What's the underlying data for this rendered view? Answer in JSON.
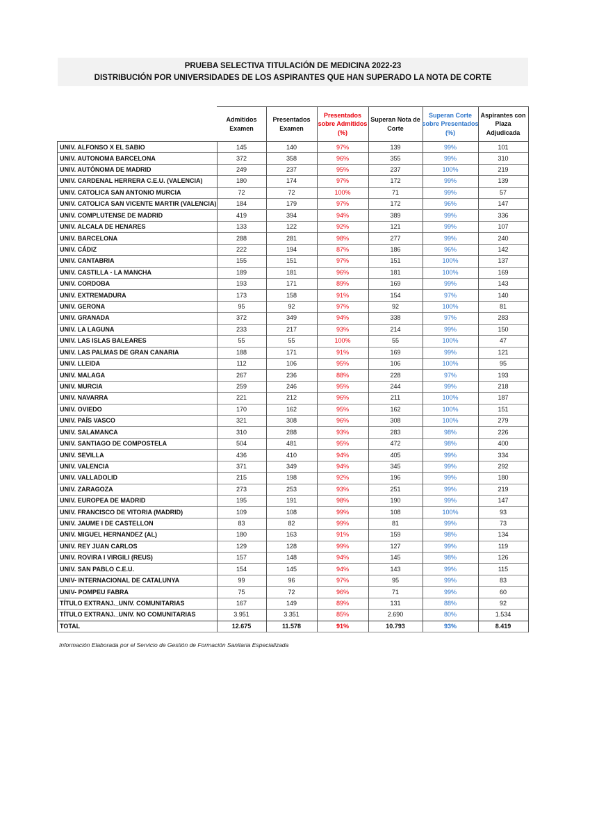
{
  "header": {
    "title": [
      "PRUEBA SELECTIVA TITULACIÓN DE MEDICINA 2022-23",
      "DISTRIBUCIÓN POR UNIVERSIDADES DE LOS ASPIRANTES QUE HAN SUPERADO LA NOTA DE CORTE"
    ]
  },
  "table": {
    "columns": [
      [
        "Admitidos",
        "Examen"
      ],
      [
        "Presentados",
        "Examen"
      ],
      [
        "Presentados",
        "sobre Admitidos",
        "(%)"
      ],
      [
        "Superan Nota de",
        "Corte"
      ],
      [
        "Superan Corte",
        "sobre Presentados",
        "(%)"
      ],
      [
        "Aspirantes con",
        "Plaza",
        "Adjudicada"
      ]
    ],
    "rows": [
      [
        "UNIV. ALFONSO X EL SABIO",
        "145",
        "140",
        "97%",
        "139",
        "99%",
        "101"
      ],
      [
        "UNIV. AUTONOMA BARCELONA",
        "372",
        "358",
        "96%",
        "355",
        "99%",
        "310"
      ],
      [
        "UNIV. AUTÓNOMA DE MADRID",
        "249",
        "237",
        "95%",
        "237",
        "100%",
        "219"
      ],
      [
        "UNIV. CARDENAL HERRERA C.E.U. (VALENCIA)",
        "180",
        "174",
        "97%",
        "172",
        "99%",
        "139"
      ],
      [
        "UNIV. CATOLICA SAN ANTONIO MURCIA",
        "72",
        "72",
        "100%",
        "71",
        "99%",
        "57"
      ],
      [
        "UNIV. CATOLICA SAN VICENTE MARTIR (VALENCIA)",
        "184",
        "179",
        "97%",
        "172",
        "96%",
        "147"
      ],
      [
        "UNIV. COMPLUTENSE DE MADRID",
        "419",
        "394",
        "94%",
        "389",
        "99%",
        "336"
      ],
      [
        "UNIV. ALCALA DE HENARES",
        "133",
        "122",
        "92%",
        "121",
        "99%",
        "107"
      ],
      [
        "UNIV. BARCELONA",
        "288",
        "281",
        "98%",
        "277",
        "99%",
        "240"
      ],
      [
        "UNIV. CÁDIZ",
        "222",
        "194",
        "87%",
        "186",
        "96%",
        "142"
      ],
      [
        "UNIV. CANTABRIA",
        "155",
        "151",
        "97%",
        "151",
        "100%",
        "137"
      ],
      [
        "UNIV. CASTILLA - LA MANCHA",
        "189",
        "181",
        "96%",
        "181",
        "100%",
        "169"
      ],
      [
        "UNIV. CORDOBA",
        "193",
        "171",
        "89%",
        "169",
        "99%",
        "143"
      ],
      [
        "UNIV. EXTREMADURA",
        "173",
        "158",
        "91%",
        "154",
        "97%",
        "140"
      ],
      [
        "UNIV. GERONA",
        "95",
        "92",
        "97%",
        "92",
        "100%",
        "81"
      ],
      [
        "UNIV. GRANADA",
        "372",
        "349",
        "94%",
        "338",
        "97%",
        "283"
      ],
      [
        "UNIV. LA LAGUNA",
        "233",
        "217",
        "93%",
        "214",
        "99%",
        "150"
      ],
      [
        "UNIV. LAS ISLAS BALEARES",
        "55",
        "55",
        "100%",
        "55",
        "100%",
        "47"
      ],
      [
        "UNIV. LAS PALMAS DE GRAN CANARIA",
        "188",
        "171",
        "91%",
        "169",
        "99%",
        "121"
      ],
      [
        "UNIV. LLEIDA",
        "112",
        "106",
        "95%",
        "106",
        "100%",
        "95"
      ],
      [
        "UNIV. MALAGA",
        "267",
        "236",
        "88%",
        "228",
        "97%",
        "193"
      ],
      [
        "UNIV. MURCIA",
        "259",
        "246",
        "95%",
        "244",
        "99%",
        "218"
      ],
      [
        "UNIV. NAVARRA",
        "221",
        "212",
        "96%",
        "211",
        "100%",
        "187"
      ],
      [
        "UNIV. OVIEDO",
        "170",
        "162",
        "95%",
        "162",
        "100%",
        "151"
      ],
      [
        "UNIV. PAÍS VASCO",
        "321",
        "308",
        "96%",
        "308",
        "100%",
        "279"
      ],
      [
        "UNIV. SALAMANCA",
        "310",
        "288",
        "93%",
        "283",
        "98%",
        "226"
      ],
      [
        "UNIV. SANTIAGO DE COMPOSTELA",
        "504",
        "481",
        "95%",
        "472",
        "98%",
        "400"
      ],
      [
        "UNIV. SEVILLA",
        "436",
        "410",
        "94%",
        "405",
        "99%",
        "334"
      ],
      [
        "UNIV. VALENCIA",
        "371",
        "349",
        "94%",
        "345",
        "99%",
        "292"
      ],
      [
        "UNIV. VALLADOLID",
        "215",
        "198",
        "92%",
        "196",
        "99%",
        "180"
      ],
      [
        "UNIV. ZARAGOZA",
        "273",
        "253",
        "93%",
        "251",
        "99%",
        "219"
      ],
      [
        "UNIV. EUROPEA DE MADRID",
        "195",
        "191",
        "98%",
        "190",
        "99%",
        "147"
      ],
      [
        "UNIV. FRANCISCO DE VITORIA (MADRID)",
        "109",
        "108",
        "99%",
        "108",
        "100%",
        "93"
      ],
      [
        "UNIV. JAUME I DE CASTELLON",
        "83",
        "82",
        "99%",
        "81",
        "99%",
        "73"
      ],
      [
        "UNIV. MIGUEL HERNANDEZ (AL)",
        "180",
        "163",
        "91%",
        "159",
        "98%",
        "134"
      ],
      [
        "UNIV. REY JUAN CARLOS",
        "129",
        "128",
        "99%",
        "127",
        "99%",
        "119"
      ],
      [
        "UNIV. ROVIRA I VIRGILI (REUS)",
        "157",
        "148",
        "94%",
        "145",
        "98%",
        "126"
      ],
      [
        "UNIV. SAN PABLO C.E.U.",
        "154",
        "145",
        "94%",
        "143",
        "99%",
        "115"
      ],
      [
        "UNIV- INTERNACIONAL DE CATALUNYA",
        "99",
        "96",
        "97%",
        "95",
        "99%",
        "83"
      ],
      [
        "UNIV- POMPEU FABRA",
        "75",
        "72",
        "96%",
        "71",
        "99%",
        "60"
      ],
      [
        "TÍTULO EXTRANJ._UNIV. COMUNITARIAS",
        "167",
        "149",
        "89%",
        "131",
        "88%",
        "92"
      ],
      [
        "TÍTULO EXTRANJ._UNIV. NO COMUNITARIAS",
        "3.951",
        "3.351",
        "85%",
        "2.690",
        "80%",
        "1.534"
      ],
      [
        "TOTAL",
        "12.675",
        "11.578",
        "91%",
        "10.793",
        "93%",
        "8.419"
      ]
    ]
  },
  "footer": {
    "note": "Información Elaborada por el Servicio de Gestión de Formación Sanitaria Especializada"
  }
}
